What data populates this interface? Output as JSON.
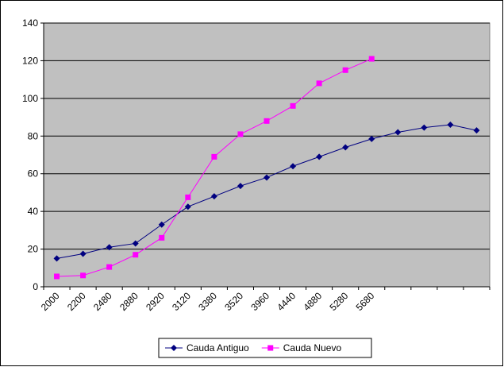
{
  "chart_data": {
    "type": "line",
    "categories": [
      "2000",
      "2200",
      "2480",
      "2880",
      "2920",
      "3120",
      "3380",
      "3520",
      "3960",
      "4440",
      "4880",
      "5280",
      "5680",
      null,
      null,
      null,
      null
    ],
    "series": [
      {
        "name": "Cauda Antiguo",
        "color": "#000080",
        "marker": "diamond",
        "values": [
          15,
          17.5,
          21,
          23,
          33,
          42.5,
          48,
          53.5,
          58,
          64,
          69,
          74,
          78.5,
          82,
          84.5,
          86,
          83
        ]
      },
      {
        "name": "Cauda Nuevo",
        "color": "#ff00ff",
        "marker": "square",
        "values": [
          5.5,
          6,
          10.5,
          17,
          26,
          47.5,
          69,
          81,
          88,
          96,
          108,
          115,
          121,
          null,
          null,
          null,
          null
        ]
      }
    ],
    "ylim": [
      0,
      140
    ],
    "yticks": [
      0,
      20,
      40,
      60,
      80,
      100,
      120,
      140
    ],
    "grid": true,
    "legend": "bottom",
    "plot_background": "#c0c0c0"
  }
}
